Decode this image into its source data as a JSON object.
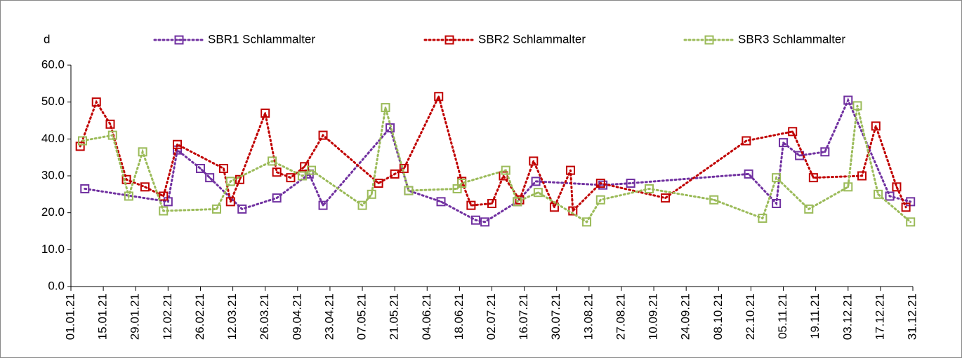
{
  "chart_data": {
    "type": "line",
    "y_label": "d",
    "ylim": [
      0,
      60
    ],
    "yticks": [
      {
        "value": 0,
        "label": "0.0"
      },
      {
        "value": 10,
        "label": "10.0"
      },
      {
        "value": 20,
        "label": "20.0"
      },
      {
        "value": 30,
        "label": "30.0"
      },
      {
        "value": 40,
        "label": "40.0"
      },
      {
        "value": 50,
        "label": "50.0"
      },
      {
        "value": 60,
        "label": "60.0"
      }
    ],
    "xlim": [
      "2021-01-01",
      "2021-12-31"
    ],
    "xticks": [
      {
        "value": "2021-01-01",
        "label": "01.01.21"
      },
      {
        "value": "2021-01-15",
        "label": "15.01.21"
      },
      {
        "value": "2021-01-29",
        "label": "29.01.21"
      },
      {
        "value": "2021-02-12",
        "label": "12.02.21"
      },
      {
        "value": "2021-02-26",
        "label": "26.02.21"
      },
      {
        "value": "2021-03-12",
        "label": "12.03.21"
      },
      {
        "value": "2021-03-26",
        "label": "26.03.21"
      },
      {
        "value": "2021-04-09",
        "label": "09.04.21"
      },
      {
        "value": "2021-04-23",
        "label": "23.04.21"
      },
      {
        "value": "2021-05-07",
        "label": "07.05.21"
      },
      {
        "value": "2021-05-21",
        "label": "21.05.21"
      },
      {
        "value": "2021-06-04",
        "label": "04.06.21"
      },
      {
        "value": "2021-06-18",
        "label": "18.06.21"
      },
      {
        "value": "2021-07-02",
        "label": "02.07.21"
      },
      {
        "value": "2021-07-16",
        "label": "16.07.21"
      },
      {
        "value": "2021-07-30",
        "label": "30.07.21"
      },
      {
        "value": "2021-08-13",
        "label": "13.08.21"
      },
      {
        "value": "2021-08-27",
        "label": "27.08.21"
      },
      {
        "value": "2021-09-10",
        "label": "10.09.21"
      },
      {
        "value": "2021-09-24",
        "label": "24.09.21"
      },
      {
        "value": "2021-10-08",
        "label": "08.10.21"
      },
      {
        "value": "2021-10-22",
        "label": "22.10.21"
      },
      {
        "value": "2021-11-05",
        "label": "05.11.21"
      },
      {
        "value": "2021-11-19",
        "label": "19.11.21"
      },
      {
        "value": "2021-12-03",
        "label": "03.12.21"
      },
      {
        "value": "2021-12-17",
        "label": "17.12.21"
      },
      {
        "value": "2021-12-31",
        "label": "31.12.21"
      }
    ],
    "series": [
      {
        "name": "SBR1 Schlammalter",
        "color": "#7030a0",
        "x": [
          "2021-01-07",
          "2021-02-12",
          "2021-02-16",
          "2021-02-26",
          "2021-03-02",
          "2021-03-16",
          "2021-03-31",
          "2021-04-14",
          "2021-04-20",
          "2021-05-19",
          "2021-05-27",
          "2021-06-10",
          "2021-06-25",
          "2021-06-29",
          "2021-07-13",
          "2021-07-21",
          "2021-08-19",
          "2021-08-31",
          "2021-10-21",
          "2021-11-02",
          "2021-11-05",
          "2021-11-12",
          "2021-11-23",
          "2021-12-03",
          "2021-12-21",
          "2021-12-30"
        ],
        "values": [
          26.5,
          23,
          37,
          32,
          29.5,
          21,
          24,
          30.5,
          22,
          43,
          26,
          23,
          18,
          17.5,
          23,
          28.5,
          27.5,
          28,
          30.5,
          22.5,
          39,
          35.5,
          36.5,
          50.5,
          24.5,
          23
        ]
      },
      {
        "name": "SBR2 Schlammalter",
        "color": "#c00000",
        "x": [
          "2021-01-05",
          "2021-01-12",
          "2021-01-18",
          "2021-01-25",
          "2021-02-02",
          "2021-02-10",
          "2021-02-16",
          "2021-03-08",
          "2021-03-11",
          "2021-03-15",
          "2021-03-26",
          "2021-03-31",
          "2021-04-06",
          "2021-04-12",
          "2021-04-20",
          "2021-05-14",
          "2021-05-21",
          "2021-05-25",
          "2021-06-09",
          "2021-06-19",
          "2021-06-23",
          "2021-07-02",
          "2021-07-07",
          "2021-07-14",
          "2021-07-20",
          "2021-07-29",
          "2021-08-05",
          "2021-08-06",
          "2021-08-18",
          "2021-09-15",
          "2021-10-20",
          "2021-11-09",
          "2021-11-18",
          "2021-12-09",
          "2021-12-15",
          "2021-12-24",
          "2021-12-28"
        ],
        "values": [
          38,
          50,
          44,
          29,
          27,
          24.5,
          38.5,
          32,
          23,
          29,
          47,
          31,
          29.5,
          32.5,
          41,
          28,
          30.5,
          32,
          51.5,
          28.5,
          22,
          22.5,
          30,
          23.5,
          34,
          21.5,
          31.5,
          20.5,
          28,
          24,
          39.5,
          42,
          29.5,
          30,
          43.5,
          27,
          21.5
        ]
      },
      {
        "name": "SBR3 Schlammalter",
        "color": "#9bbb59",
        "x": [
          "2021-01-06",
          "2021-01-19",
          "2021-01-26",
          "2021-02-01",
          "2021-02-10",
          "2021-03-05",
          "2021-03-11",
          "2021-03-29",
          "2021-04-11",
          "2021-04-15",
          "2021-05-07",
          "2021-05-11",
          "2021-05-17",
          "2021-05-27",
          "2021-06-17",
          "2021-06-19",
          "2021-07-08",
          "2021-07-13",
          "2021-07-22",
          "2021-08-12",
          "2021-08-18",
          "2021-09-08",
          "2021-10-06",
          "2021-10-27",
          "2021-11-02",
          "2021-11-16",
          "2021-12-03",
          "2021-12-07",
          "2021-12-16",
          "2021-12-30"
        ],
        "values": [
          39.5,
          41,
          24.5,
          36.5,
          20.5,
          21,
          28.5,
          34,
          30,
          31.5,
          22,
          25,
          48.5,
          26,
          26.5,
          28,
          31.5,
          23,
          25.5,
          17.5,
          23.5,
          26.5,
          23.5,
          18.5,
          29.5,
          21,
          27,
          49,
          25,
          17.5
        ]
      }
    ]
  }
}
